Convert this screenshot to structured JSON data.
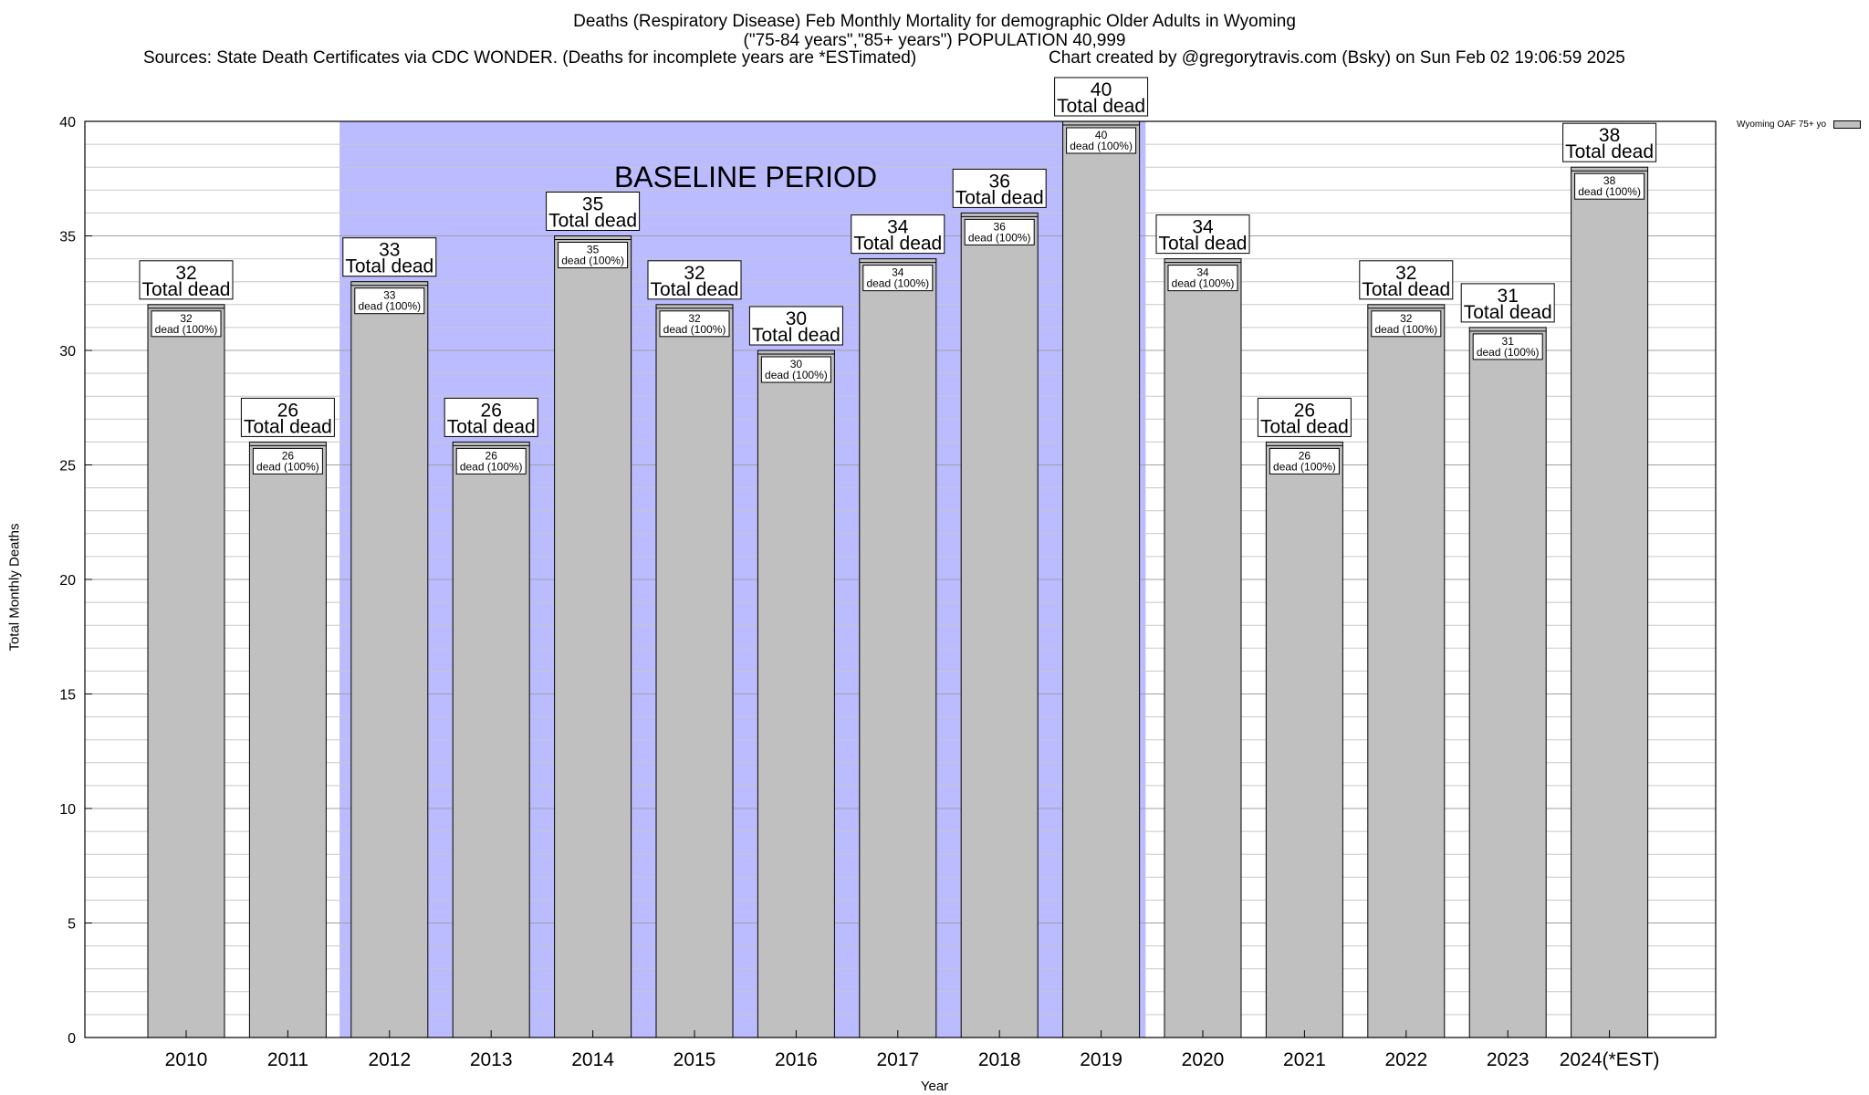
{
  "chart_data": {
    "type": "bar",
    "title": "Deaths (Respiratory Disease) Feb Monthly Mortality for demographic Older Adults in Wyoming",
    "subtitle": "(\"75-84 years\",\"85+ years\") POPULATION 40,999",
    "source": "Sources: State Death Certificates via CDC WONDER. (Deaths for incomplete years are *ESTimated)",
    "credit": "Chart created by @gregorytravis.com (Bsky) on Sun Feb 02 19:06:59 2025",
    "xlabel": "Year",
    "ylabel": "Total Monthly Deaths",
    "ylim": [
      0,
      40
    ],
    "yticks": [
      0,
      5,
      10,
      15,
      20,
      25,
      30,
      35,
      40
    ],
    "categories": [
      "2010",
      "2011",
      "2012",
      "2013",
      "2014",
      "2015",
      "2016",
      "2017",
      "2018",
      "2019",
      "2020",
      "2021",
      "2022",
      "2023",
      "2024(*EST)"
    ],
    "series": [
      {
        "name": "Wyoming OAF 75+ yo",
        "values": [
          32,
          26,
          33,
          26,
          35,
          32,
          30,
          34,
          36,
          40,
          34,
          26,
          32,
          31,
          38
        ],
        "color": "#c0c0c0"
      }
    ],
    "bar_label_top": "Total dead",
    "bar_label_inner": "dead (100%)",
    "baseline_period": {
      "label": "BASELINE PERIOD",
      "from": "2012",
      "to": "2019",
      "color": "#bbbbff"
    },
    "grid": true,
    "legend_position": "top-right"
  }
}
